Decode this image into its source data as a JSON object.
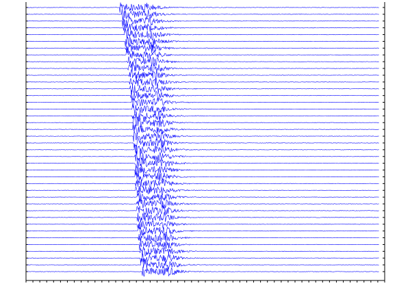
{
  "chart_data": {
    "type": "record-section",
    "color": "#0000ff",
    "amplitude": 0.9,
    "xlim": [
      0,
      52
    ],
    "xticks": [
      0,
      1,
      2,
      3,
      4,
      5,
      6,
      7,
      8,
      9,
      10,
      11,
      12,
      13,
      14,
      15,
      16,
      17,
      18,
      19,
      20,
      21,
      22,
      23,
      24,
      25,
      26,
      27,
      28,
      29,
      30,
      31,
      32,
      33,
      34,
      35,
      36,
      37,
      38,
      39,
      40,
      41,
      42,
      43,
      44,
      45,
      46,
      47,
      48,
      49,
      50,
      51,
      52
    ],
    "traces": [
      {
        "onset": 13.6
      },
      {
        "onset": 13.9
      },
      {
        "onset": 14.0
      },
      {
        "onset": 14.1
      },
      {
        "onset": 14.3
      },
      {
        "onset": 14.4
      },
      {
        "onset": 14.4
      },
      {
        "onset": 14.5
      },
      {
        "onset": 14.6
      },
      {
        "onset": 14.8
      },
      {
        "onset": 14.9
      },
      {
        "onset": 15.0
      },
      {
        "onset": 15.1
      },
      {
        "onset": 15.2
      },
      {
        "onset": 15.3
      },
      {
        "onset": 15.4
      },
      {
        "onset": 15.4
      },
      {
        "onset": 15.5
      },
      {
        "onset": 15.5
      },
      {
        "onset": 15.6
      },
      {
        "onset": 15.6
      },
      {
        "onset": 15.7
      },
      {
        "onset": 15.7
      },
      {
        "onset": 15.8
      },
      {
        "onset": 15.8
      },
      {
        "onset": 15.8
      },
      {
        "onset": 15.9
      },
      {
        "onset": 15.9
      },
      {
        "onset": 16.0
      },
      {
        "onset": 16.0
      },
      {
        "onset": 16.0
      },
      {
        "onset": 16.1
      },
      {
        "onset": 16.1
      },
      {
        "onset": 16.2
      },
      {
        "onset": 16.3
      },
      {
        "onset": 16.4
      },
      {
        "onset": 16.5
      },
      {
        "onset": 16.6
      },
      {
        "onset": 16.7
      },
      {
        "onset": 16.8
      }
    ]
  }
}
